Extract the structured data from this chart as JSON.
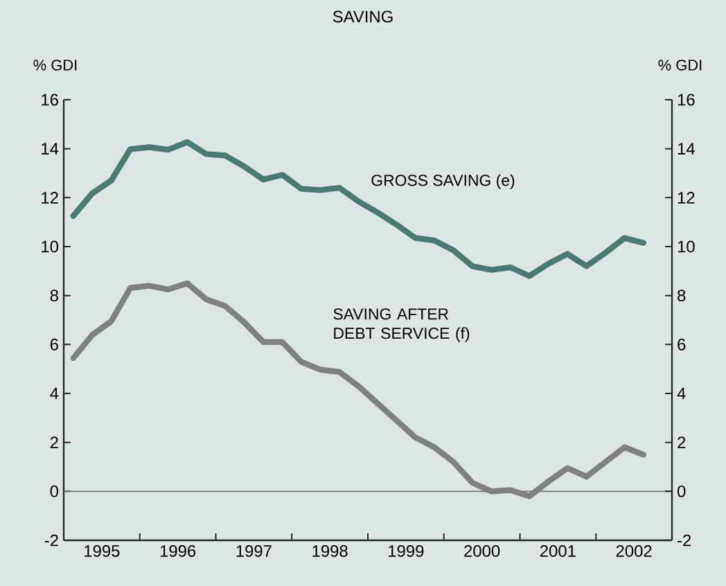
{
  "chart_data": {
    "type": "line",
    "title": "SAVING",
    "ylabel": "% GDI",
    "y2label": "% GDI",
    "x": [
      1994.625,
      1994.875,
      1995.125,
      1995.375,
      1995.625,
      1995.875,
      1996.125,
      1996.375,
      1996.625,
      1996.875,
      1997.125,
      1997.375,
      1997.625,
      1997.875,
      1998.125,
      1998.375,
      1998.625,
      1998.875,
      1999.125,
      1999.375,
      1999.625,
      1999.875,
      2000.125,
      2000.375,
      2000.625,
      2000.875,
      2001.125,
      2001.375,
      2001.625,
      2001.875,
      2002.125
    ],
    "series": [
      {
        "name": "GROSS SAVING (e)",
        "color": "#4a7a74",
        "values": [
          11.25,
          12.17,
          12.7,
          13.98,
          14.06,
          13.96,
          14.27,
          13.78,
          13.72,
          13.27,
          12.74,
          12.93,
          12.36,
          12.31,
          12.4,
          11.85,
          11.4,
          10.9,
          10.35,
          10.25,
          9.85,
          9.2,
          9.05,
          9.15,
          8.8,
          9.3,
          9.7,
          9.2,
          9.75,
          10.35,
          10.15
        ]
      },
      {
        "name": "SAVING AFTER DEBT SERVICE (f)",
        "color": "#808080",
        "values": [
          5.44,
          6.39,
          6.95,
          8.31,
          8.4,
          8.25,
          8.5,
          7.84,
          7.57,
          6.9,
          6.1,
          6.1,
          5.29,
          4.97,
          4.88,
          4.3,
          3.6,
          2.9,
          2.2,
          1.8,
          1.2,
          0.35,
          0.0,
          0.05,
          -0.2,
          0.4,
          0.95,
          0.6,
          1.2,
          1.8,
          1.5
        ]
      }
    ],
    "xlim": [
      1994.5,
      2002.5
    ],
    "xticks": [
      {
        "value": 1995,
        "label": "1995"
      },
      {
        "value": 1995.5,
        "label": null
      },
      {
        "value": 1996,
        "label": "1996"
      },
      {
        "value": 1996.5,
        "label": null
      },
      {
        "value": 1997,
        "label": "1997"
      },
      {
        "value": 1997.5,
        "label": null
      },
      {
        "value": 1998,
        "label": "1998"
      },
      {
        "value": 1998.5,
        "label": null
      },
      {
        "value": 1999,
        "label": "1999"
      },
      {
        "value": 1999.5,
        "label": null
      },
      {
        "value": 2000,
        "label": "2000"
      },
      {
        "value": 2000.5,
        "label": null
      },
      {
        "value": 2001,
        "label": "2001"
      },
      {
        "value": 2001.5,
        "label": null
      },
      {
        "value": 2002,
        "label": "2002"
      }
    ],
    "ylim": [
      -2,
      16
    ],
    "yticks": [
      -2,
      0,
      2,
      4,
      6,
      8,
      10,
      12,
      14,
      16
    ],
    "y2lim": [
      -2,
      16
    ],
    "y2ticks": [
      -2,
      0,
      2,
      4,
      6,
      8,
      10,
      12,
      14,
      16
    ],
    "ref_lines": [
      {
        "axis": "y",
        "value": 0,
        "color": "#707070"
      }
    ],
    "grid": false,
    "line_style": "solid",
    "marker": "none"
  }
}
